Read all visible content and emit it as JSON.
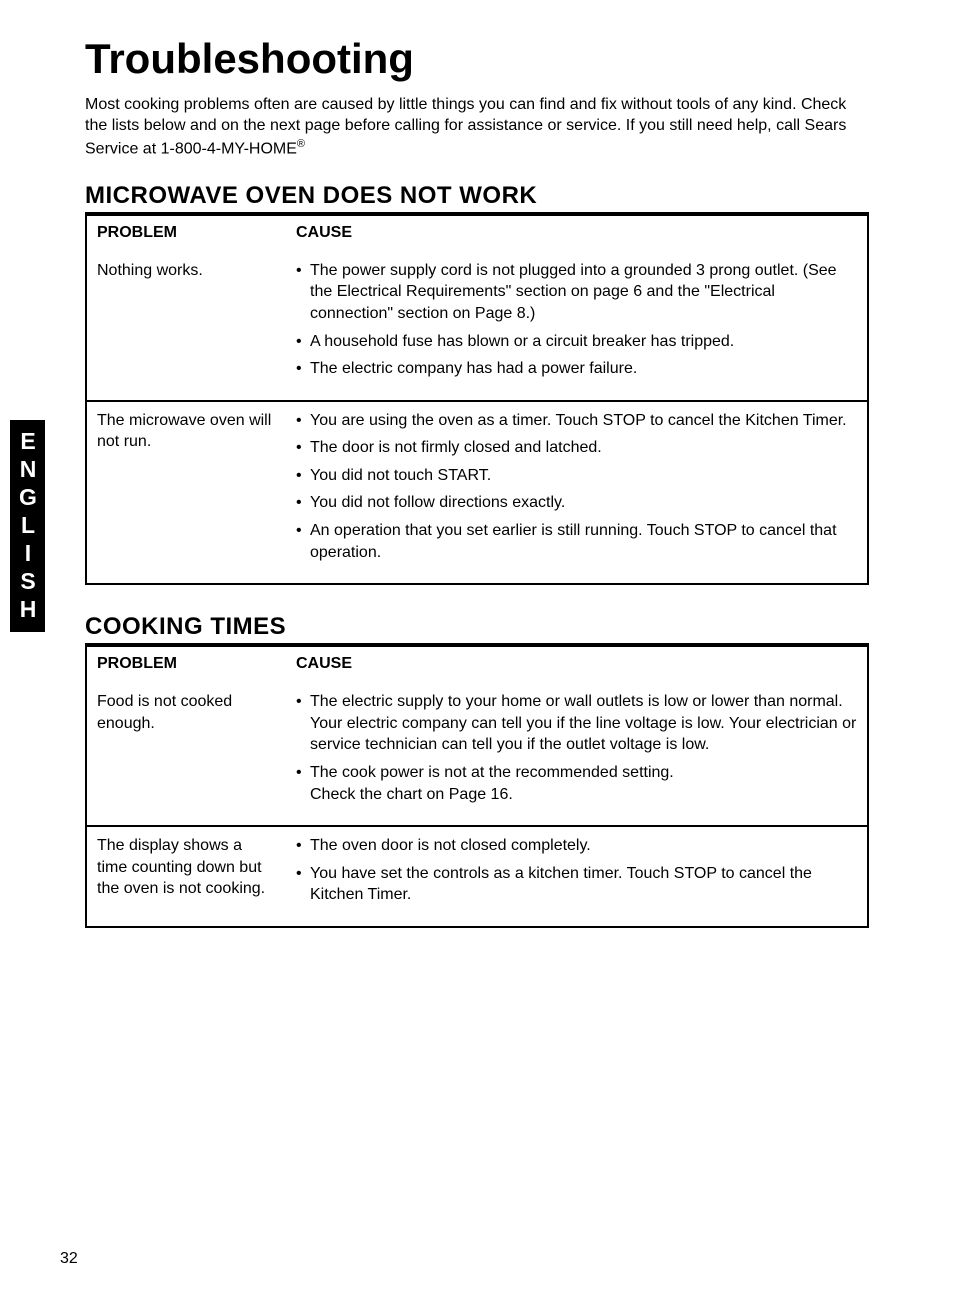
{
  "side_tab": "ENGLISH",
  "title": "Troubleshooting",
  "intro": "Most cooking problems often are caused by little things you can find and fix without tools of any kind. Check the lists below and on the next page before calling for assistance or service. If you still need help, call Sears Service at 1-800-4-MY-HOME",
  "trademark_symbol": "®",
  "page_number": "32",
  "sections": [
    {
      "heading": "MICROWAVE OVEN DOES NOT WORK",
      "columns": {
        "problem": "PROBLEM",
        "cause": "CAUSE"
      },
      "rows": [
        {
          "problem": "Nothing works.",
          "causes": [
            "The power supply cord is not plugged into a grounded 3 prong outlet. (See the Electrical Requirements\" section on page 6 and the \"Electrical connection\" section on Page 8.)",
            "A household fuse has blown or a circuit breaker has tripped.",
            "The electric company has had a power failure."
          ]
        },
        {
          "problem": "The microwave oven will not run.",
          "causes": [
            "You are using the oven as a timer. Touch STOP to cancel the Kitchen Timer.",
            "The door is not firmly closed and latched.",
            "You did not touch START.",
            "You did not follow directions exactly.",
            "An operation that you set earlier is still running. Touch STOP to cancel that operation."
          ]
        }
      ]
    },
    {
      "heading": "COOKING TIMES",
      "columns": {
        "problem": "PROBLEM",
        "cause": "CAUSE"
      },
      "rows": [
        {
          "problem": "Food is not cooked enough.",
          "causes": [
            "The electric supply to your home or wall outlets is low or lower than normal. Your electric company can tell you if the line voltage is low. Your electrician or service technician can tell you if the outlet voltage is low.",
            "The cook power is not at the recommended setting.\nCheck the chart on Page 16."
          ]
        },
        {
          "problem": "The display shows a time counting down but the oven is not cooking.",
          "causes": [
            "The oven door is not closed completely.",
            "You have set the controls as a kitchen timer. Touch STOP to cancel the Kitchen Timer."
          ]
        }
      ]
    }
  ]
}
